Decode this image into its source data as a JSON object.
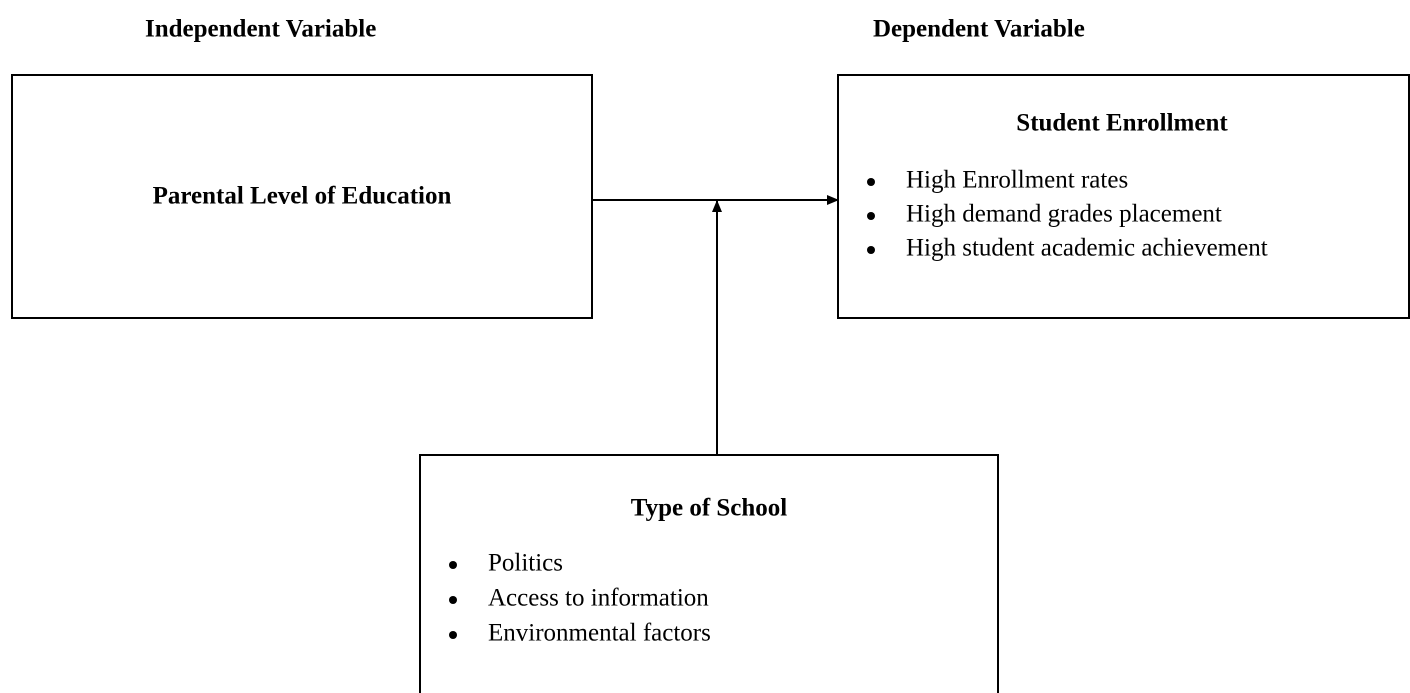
{
  "headers": {
    "independent": "Independent Variable",
    "dependent": "Dependent Variable"
  },
  "nodes": [
    {
      "title": "Parental Level of Education",
      "items": []
    },
    {
      "title": "Student Enrollment",
      "items": [
        "High Enrollment rates",
        "High demand grades placement",
        "High student academic achievement"
      ]
    },
    {
      "title": "Type of School",
      "items": [
        "Politics",
        "Access to information",
        "Environmental factors"
      ]
    }
  ]
}
